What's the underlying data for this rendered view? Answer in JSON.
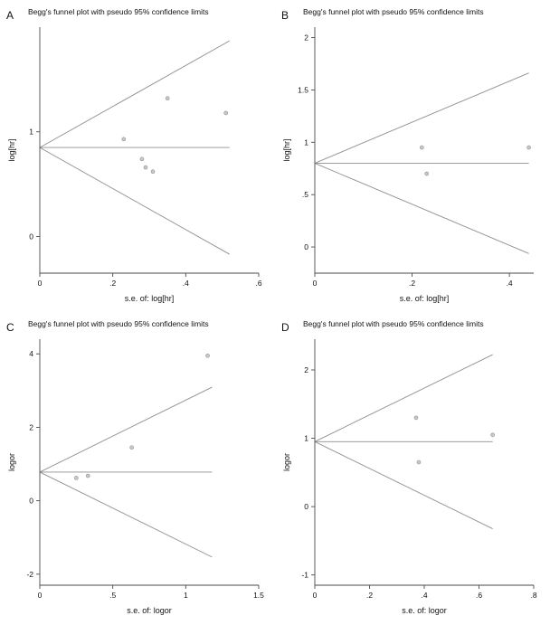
{
  "colors": {
    "axis": "#4a4a4a",
    "funnel": "#8f8f8f",
    "point_fill": "#c8c8c8",
    "point_stroke": "#909090",
    "text": "#111111",
    "background": "#ffffff"
  },
  "chart_data": [
    {
      "type": "scatter",
      "panel": "A",
      "title": "Begg's funnel plot with pseudo 95% confidence limits",
      "xlabel": "s.e. of: log[hr]",
      "ylabel": "log[hr]",
      "xlim": [
        0,
        0.6
      ],
      "ylim": [
        -0.35,
        2.0
      ],
      "xticks": [
        0,
        0.2,
        0.4,
        0.6
      ],
      "xtick_labels": [
        "0",
        ".2",
        ".4",
        ".6"
      ],
      "yticks": [
        0,
        1
      ],
      "ytick_labels": [
        "0",
        "1"
      ],
      "grid": false,
      "legend": "none",
      "pooled_estimate": 0.85,
      "se_max": 0.52,
      "ci_multiplier": 1.96,
      "points": [
        [
          0.23,
          0.93
        ],
        [
          0.28,
          0.74
        ],
        [
          0.29,
          0.66
        ],
        [
          0.31,
          0.62
        ],
        [
          0.35,
          1.32
        ],
        [
          0.51,
          1.18
        ]
      ]
    },
    {
      "type": "scatter",
      "panel": "B",
      "title": "Begg's funnel plot with pseudo 95% confidence limits",
      "xlabel": "s.e. of: log[hr]",
      "ylabel": "log[hr]",
      "xlim": [
        0,
        0.45
      ],
      "ylim": [
        -0.25,
        2.1
      ],
      "xticks": [
        0,
        0.2,
        0.4
      ],
      "xtick_labels": [
        "0",
        ".2",
        ".4"
      ],
      "yticks": [
        0,
        0.5,
        1,
        1.5,
        2
      ],
      "ytick_labels": [
        "0",
        ".5",
        "1",
        "1.5",
        "2"
      ],
      "grid": false,
      "legend": "none",
      "pooled_estimate": 0.8,
      "se_max": 0.44,
      "ci_multiplier": 1.96,
      "points": [
        [
          0.22,
          0.95
        ],
        [
          0.23,
          0.7
        ],
        [
          0.44,
          0.95
        ]
      ]
    },
    {
      "type": "scatter",
      "panel": "C",
      "title": "Begg's funnel plot with pseudo 95% confidence limits",
      "xlabel": "s.e. of: logor",
      "ylabel": "logor",
      "xlim": [
        0,
        1.5
      ],
      "ylim": [
        -2.3,
        4.4
      ],
      "xticks": [
        0,
        0.5,
        1,
        1.5
      ],
      "xtick_labels": [
        "0",
        ".5",
        "1",
        "1.5"
      ],
      "yticks": [
        -2,
        0,
        2,
        4
      ],
      "ytick_labels": [
        "-2",
        "0",
        "2",
        "4"
      ],
      "grid": false,
      "legend": "none",
      "pooled_estimate": 0.78,
      "se_max": 1.18,
      "ci_multiplier": 1.96,
      "points": [
        [
          0.25,
          0.62
        ],
        [
          0.33,
          0.68
        ],
        [
          0.63,
          1.45
        ],
        [
          1.15,
          3.95
        ]
      ]
    },
    {
      "type": "scatter",
      "panel": "D",
      "title": "Begg's funnel plot with pseudo 95% confidence limits",
      "xlabel": "s.e. of: logor",
      "ylabel": "logor",
      "xlim": [
        0,
        0.8
      ],
      "ylim": [
        -1.15,
        2.45
      ],
      "xticks": [
        0,
        0.2,
        0.4,
        0.6,
        0.8
      ],
      "xtick_labels": [
        "0",
        ".2",
        ".4",
        ".6",
        ".8"
      ],
      "yticks": [
        -1,
        0,
        1,
        2
      ],
      "ytick_labels": [
        "-1",
        "0",
        "1",
        "2"
      ],
      "grid": false,
      "legend": "none",
      "pooled_estimate": 0.95,
      "se_max": 0.65,
      "ci_multiplier": 1.96,
      "points": [
        [
          0.37,
          1.3
        ],
        [
          0.38,
          0.65
        ],
        [
          0.65,
          1.05
        ]
      ]
    }
  ]
}
